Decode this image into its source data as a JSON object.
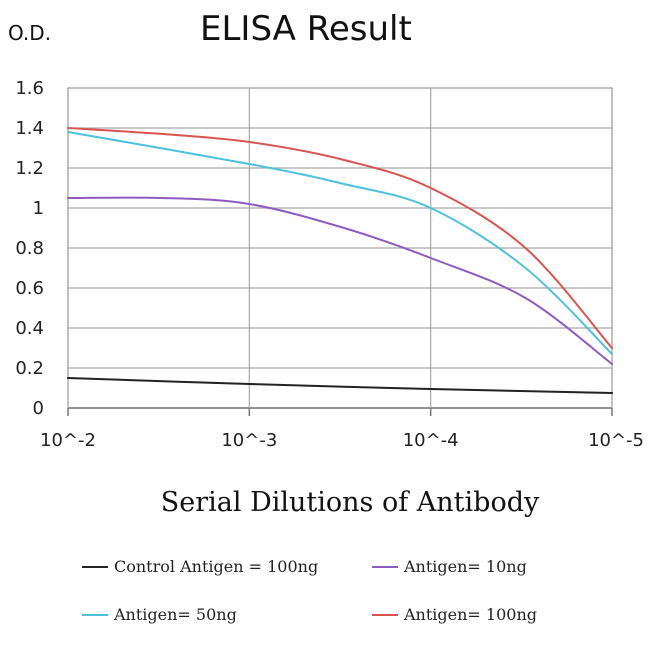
{
  "chart_data": {
    "type": "line",
    "title": "ELISA Result",
    "ylabel": "O.D.",
    "xlabel": "Serial Dilutions of Antibody",
    "x_scale": "log",
    "x_ticks": [
      {
        "value": 0.01,
        "label": "10^-2"
      },
      {
        "value": 0.001,
        "label": "10^-3"
      },
      {
        "value": 0.0001,
        "label": "10^-4"
      },
      {
        "value": 1e-05,
        "label": "10^-5"
      }
    ],
    "xlim": [
      0.01,
      1e-05
    ],
    "ylim": [
      0,
      1.6
    ],
    "y_ticks": [
      0,
      0.2,
      0.4,
      0.6,
      0.8,
      1,
      1.2,
      1.4,
      1.6
    ],
    "y_tick_labels": [
      "0",
      "0.2",
      "0.4",
      "0.6",
      "0.8",
      "1",
      "1.2",
      "1.4",
      "1.6"
    ],
    "grid": true,
    "legend_position": "bottom",
    "series": [
      {
        "name": "Control Antigen = 100ng",
        "color": "#222222",
        "points": [
          [
            0.01,
            0.15
          ],
          [
            0.001,
            0.12
          ],
          [
            0.0001,
            0.095
          ],
          [
            1e-05,
            0.075
          ]
        ]
      },
      {
        "name": "Antigen= 10ng",
        "color": "#8e5bc2",
        "points": [
          [
            0.01,
            1.05
          ],
          [
            0.003,
            1.05
          ],
          [
            0.001,
            1.02
          ],
          [
            0.0003,
            0.9
          ],
          [
            0.0001,
            0.75
          ],
          [
            3e-05,
            0.55
          ],
          [
            1e-05,
            0.22
          ]
        ]
      },
      {
        "name": "Antigen= 50ng",
        "color": "#4cc1e0",
        "points": [
          [
            0.01,
            1.38
          ],
          [
            0.001,
            1.22
          ],
          [
            0.0003,
            1.12
          ],
          [
            0.0001,
            1.0
          ],
          [
            3e-05,
            0.7
          ],
          [
            1e-05,
            0.27
          ]
        ]
      },
      {
        "name": "Antigen= 100ng",
        "color": "#d9534f",
        "points": [
          [
            0.01,
            1.4
          ],
          [
            0.003,
            1.37
          ],
          [
            0.001,
            1.33
          ],
          [
            0.0003,
            1.24
          ],
          [
            0.0001,
            1.1
          ],
          [
            3e-05,
            0.8
          ],
          [
            1e-05,
            0.3
          ]
        ]
      }
    ]
  }
}
